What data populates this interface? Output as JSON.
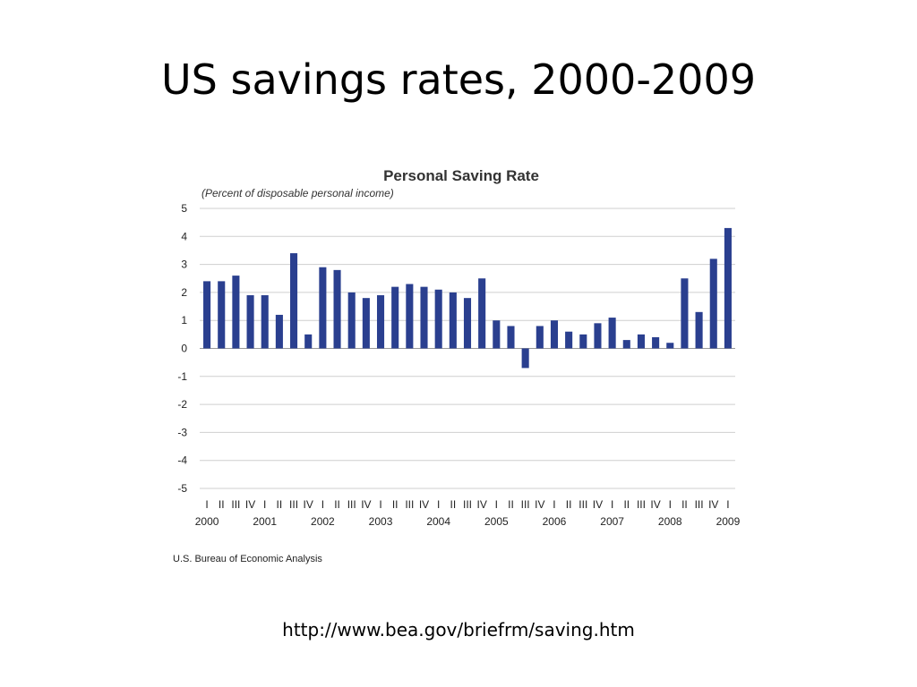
{
  "slide": {
    "title": "US savings rates, 2000-2009",
    "source_url": "http://www.bea.gov/briefrm/saving.htm"
  },
  "chart_data": {
    "type": "bar",
    "title": "Personal Saving Rate",
    "subtitle": "(Percent of disposable personal income)",
    "source": "U.S. Bureau of Economic Analysis",
    "ylim": [
      -5,
      5
    ],
    "yticks": [
      5,
      4,
      3,
      2,
      1,
      0,
      -1,
      -2,
      -3,
      -4,
      -5
    ],
    "grid": true,
    "bar_color": "#2a3f8f",
    "categories": [
      "2000 I",
      "2000 II",
      "2000 III",
      "2000 IV",
      "2001 I",
      "2001 II",
      "2001 III",
      "2001 IV",
      "2002 I",
      "2002 II",
      "2002 III",
      "2002 IV",
      "2003 I",
      "2003 II",
      "2003 III",
      "2003 IV",
      "2004 I",
      "2004 II",
      "2004 III",
      "2004 IV",
      "2005 I",
      "2005 II",
      "2005 III",
      "2005 IV",
      "2006 I",
      "2006 II",
      "2006 III",
      "2006 IV",
      "2007 I",
      "2007 II",
      "2007 III",
      "2007 IV",
      "2008 I",
      "2008 II",
      "2008 III",
      "2008 IV",
      "2009 I"
    ],
    "quarter_labels": [
      "I",
      "II",
      "III",
      "IV",
      "I",
      "II",
      "III",
      "IV",
      "I",
      "II",
      "III",
      "IV",
      "I",
      "II",
      "III",
      "IV",
      "I",
      "II",
      "III",
      "IV",
      "I",
      "II",
      "III",
      "IV",
      "I",
      "II",
      "III",
      "IV",
      "I",
      "II",
      "III",
      "IV",
      "I",
      "II",
      "III",
      "IV",
      "I"
    ],
    "year_labels": [
      "2000",
      "2001",
      "2002",
      "2003",
      "2004",
      "2005",
      "2006",
      "2007",
      "2008",
      "2009"
    ],
    "values": [
      2.4,
      2.4,
      2.6,
      1.9,
      1.9,
      1.2,
      3.4,
      0.5,
      2.9,
      2.8,
      2.0,
      1.8,
      1.9,
      2.2,
      2.3,
      2.2,
      2.1,
      2.0,
      1.8,
      2.5,
      1.0,
      0.8,
      -0.7,
      0.8,
      1.0,
      0.6,
      0.5,
      0.9,
      1.1,
      0.3,
      0.5,
      0.4,
      0.2,
      2.5,
      1.3,
      3.2,
      4.3
    ]
  }
}
